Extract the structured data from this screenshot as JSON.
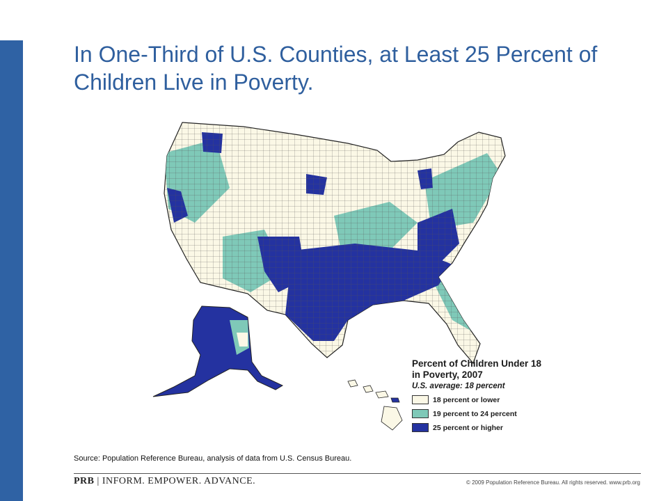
{
  "slide": {
    "title": "In One-Third of U.S. Counties, at Least 25 Percent of Children Live in Poverty.",
    "source": "Source: Population Reference Bureau, analysis of data from U.S. Census Bureau.",
    "brand_logo": "PRB",
    "brand_separator": "|",
    "brand_tagline": "INFORM. EMPOWER. ADVANCE.",
    "copyright": "© 2009 Population Reference Bureau. All rights reserved. www.prb.org"
  },
  "legend": {
    "title_line1": "Percent of Children Under 18",
    "title_line2": "in Poverty, 2007",
    "average": "U.S. average: 18 percent",
    "items": [
      {
        "label": "18 percent or lower",
        "color": "#fbf8e6"
      },
      {
        "label": "19 percent to 24 percent",
        "color": "#7fc9b8"
      },
      {
        "label": "25 percent or higher",
        "color": "#2432a0"
      }
    ]
  },
  "colors": {
    "accent": "#2f62a4",
    "title": "#2f5f9e",
    "low": "#fbf8e6",
    "mid": "#7fc9b8",
    "high": "#2432a0"
  }
}
